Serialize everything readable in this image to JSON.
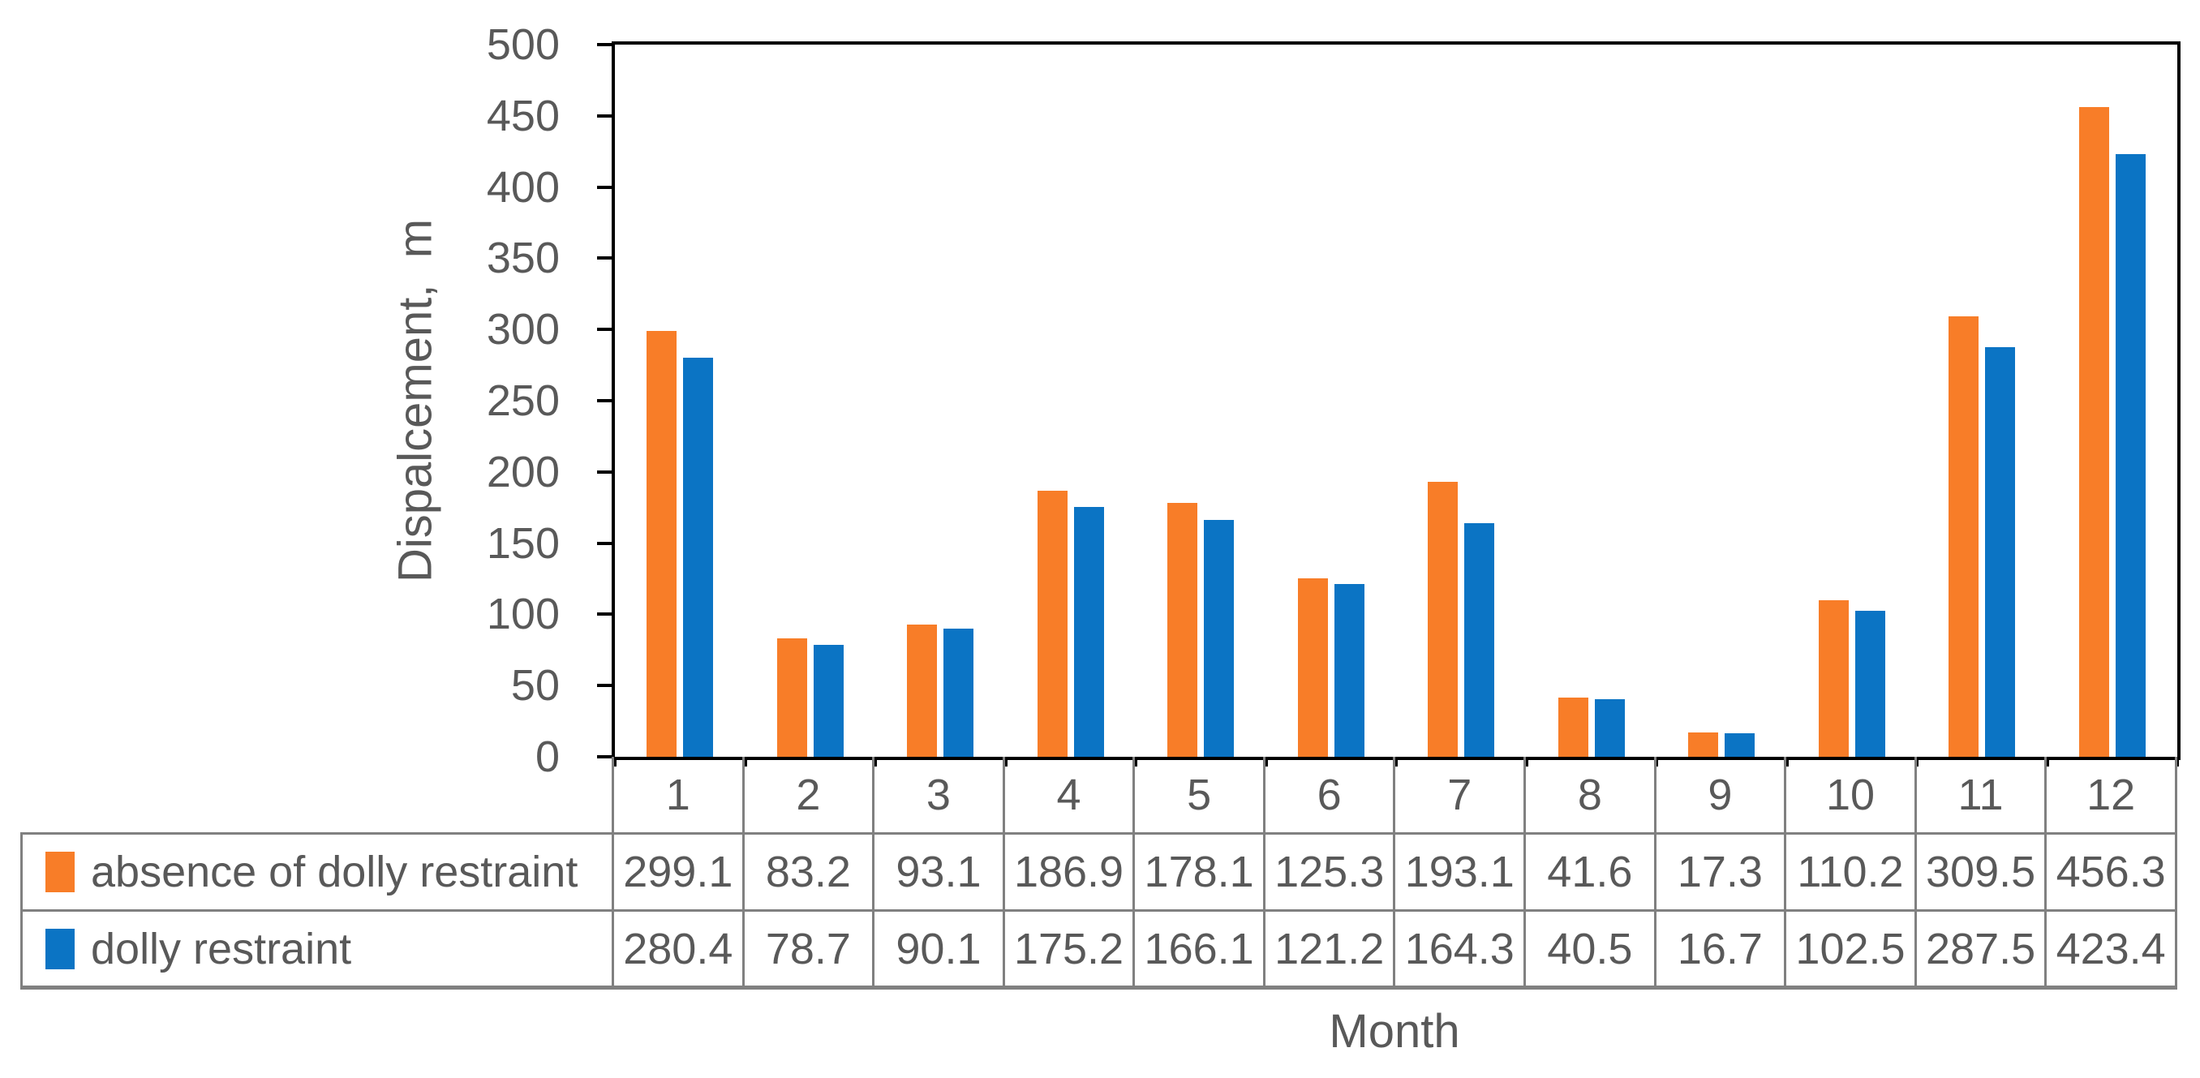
{
  "chart_data": {
    "type": "bar",
    "title": "",
    "xlabel": "Month",
    "ylabel": "Dispalcement,  m",
    "ylim": [
      0,
      500
    ],
    "ytick_step": 50,
    "grid": false,
    "legend_position": "data-table-left",
    "data_table_shown": true,
    "categories": [
      "1",
      "2",
      "3",
      "4",
      "5",
      "6",
      "7",
      "8",
      "9",
      "10",
      "11",
      "12"
    ],
    "series": [
      {
        "name": "absence of dolly restraint",
        "color": "#F87D28",
        "values": [
          299.1,
          83.2,
          93.1,
          186.9,
          178.1,
          125.3,
          193.1,
          41.6,
          17.3,
          110.2,
          309.5,
          456.3
        ]
      },
      {
        "name": "dolly restraint",
        "color": "#0B74C4",
        "values": [
          280.4,
          78.7,
          90.1,
          175.2,
          166.1,
          121.2,
          164.3,
          40.5,
          16.7,
          102.5,
          287.5,
          423.4
        ]
      }
    ]
  },
  "colors": {
    "axis_text": "#595959",
    "plot_border": "#000000",
    "table_border": "#808080",
    "background": "#FFFFFF"
  }
}
